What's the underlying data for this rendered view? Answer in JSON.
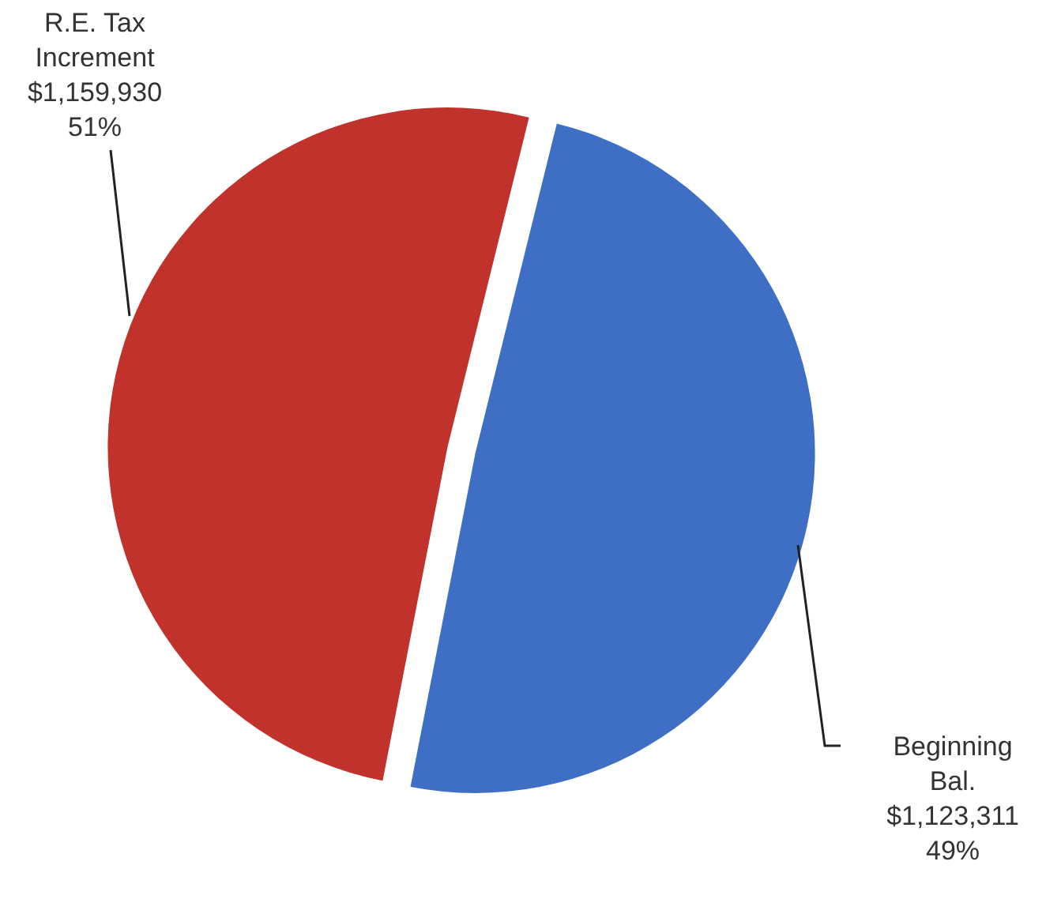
{
  "chart_data": {
    "type": "pie",
    "categories": [
      "R.E. Tax Increment",
      "Beginning Bal."
    ],
    "values": [
      1159930,
      1123311
    ],
    "colors": [
      "#c0322b",
      "#3f6fc4"
    ],
    "value_labels": [
      "$1,159,930\n51%",
      "$1,123,311\n49%"
    ]
  }
}
